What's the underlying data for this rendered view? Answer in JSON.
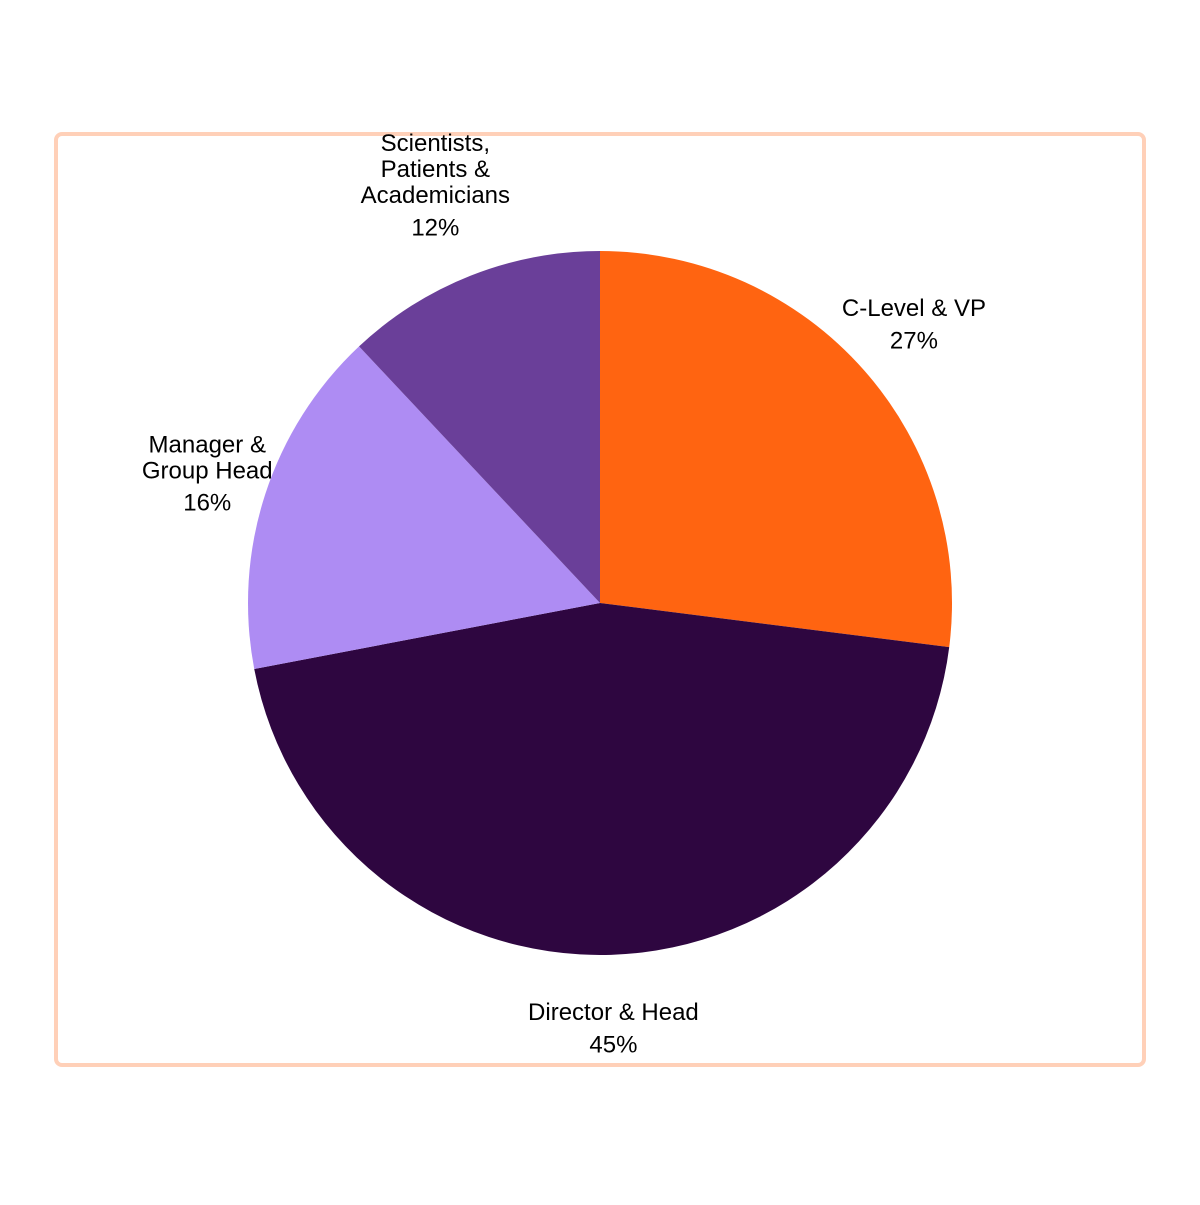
{
  "chart_data": {
    "type": "pie",
    "categories": [
      "C-Level & VP",
      "Director & Head",
      "Manager &\nGroup Head",
      "Scientists,\nPatients &\nAcademicians"
    ],
    "values": [
      27,
      45,
      16,
      12
    ],
    "value_labels": [
      "27%",
      "45%",
      "16%",
      "12%"
    ],
    "colors": [
      "#ff6411",
      "#2e0640",
      "#ae8cf3",
      "#6a3f99"
    ]
  }
}
